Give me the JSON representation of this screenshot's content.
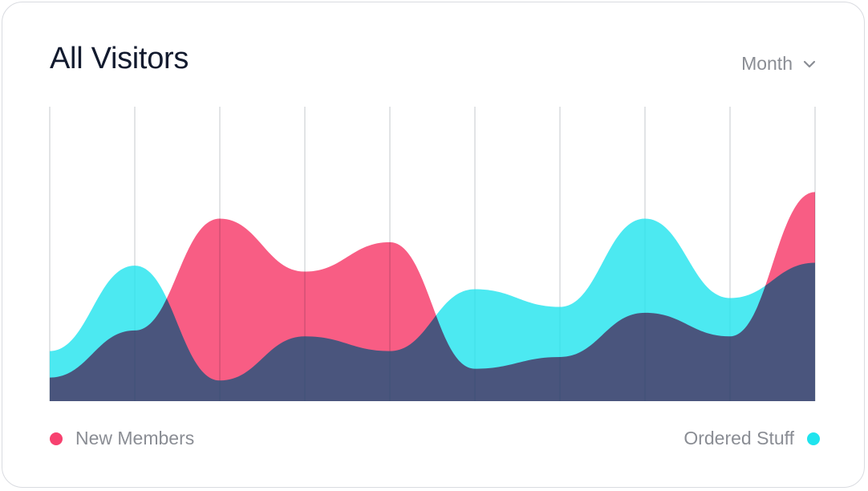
{
  "header": {
    "title": "All Visitors",
    "period_label": "Month"
  },
  "legend": {
    "left_label": "New Members",
    "right_label": "Ordered Stuff"
  },
  "colors": {
    "new_members": "#f7416f",
    "ordered_stuff": "#1fe4ee"
  },
  "icons": {
    "period_dropdown": "chevron-down-icon"
  },
  "chart_data": {
    "type": "area",
    "title": "All Visitors",
    "x_count": 10,
    "ylim": [
      0,
      100
    ],
    "grid": "vertical",
    "legend_placement": "bottom",
    "series": [
      {
        "name": "New Members",
        "color": "#f7416f",
        "values": [
          8,
          24,
          62,
          44,
          54,
          11,
          15,
          30,
          22,
          71
        ]
      },
      {
        "name": "Ordered Stuff",
        "color": "#1fe4ee",
        "values": [
          17,
          46,
          7,
          22,
          17,
          38,
          32,
          62,
          35,
          47
        ]
      }
    ]
  }
}
